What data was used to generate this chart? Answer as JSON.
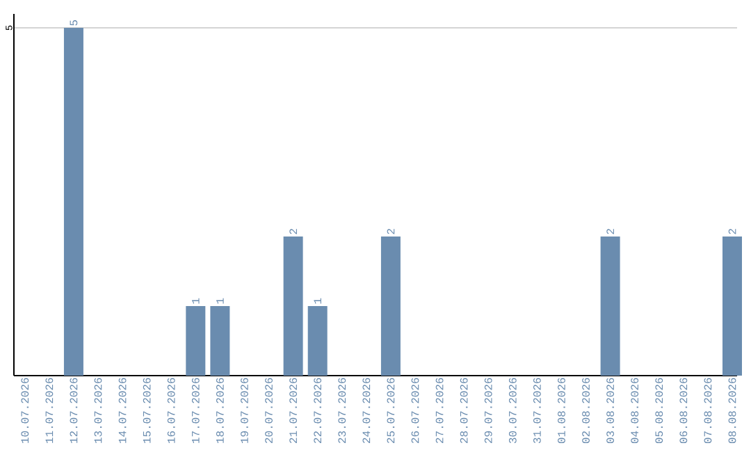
{
  "chart_data": {
    "type": "bar",
    "categories": [
      "10.07.2026",
      "11.07.2026",
      "12.07.2026",
      "13.07.2026",
      "14.07.2026",
      "15.07.2026",
      "16.07.2026",
      "17.07.2026",
      "18.07.2026",
      "19.07.2026",
      "20.07.2026",
      "21.07.2026",
      "22.07.2026",
      "23.07.2026",
      "24.07.2026",
      "25.07.2026",
      "26.07.2026",
      "27.07.2026",
      "28.07.2026",
      "29.07.2026",
      "30.07.2026",
      "31.07.2026",
      "01.08.2026",
      "02.08.2026",
      "03.08.2026",
      "04.08.2026",
      "05.08.2026",
      "06.08.2026",
      "07.08.2026",
      "08.08.2026"
    ],
    "values": [
      0,
      0,
      5,
      0,
      0,
      0,
      0,
      1,
      1,
      0,
      0,
      2,
      1,
      0,
      0,
      2,
      0,
      0,
      0,
      0,
      0,
      0,
      0,
      0,
      2,
      0,
      0,
      0,
      0,
      2
    ],
    "value_labels": [
      null,
      null,
      "5",
      null,
      null,
      null,
      null,
      "1",
      "1",
      null,
      null,
      "2",
      "1",
      null,
      null,
      "2",
      null,
      null,
      null,
      null,
      null,
      null,
      null,
      null,
      "2",
      null,
      null,
      null,
      null,
      "2"
    ],
    "color": "#6a8caf",
    "ylim": [
      0,
      5.2
    ],
    "yticks": [
      5
    ],
    "grid": "y"
  }
}
